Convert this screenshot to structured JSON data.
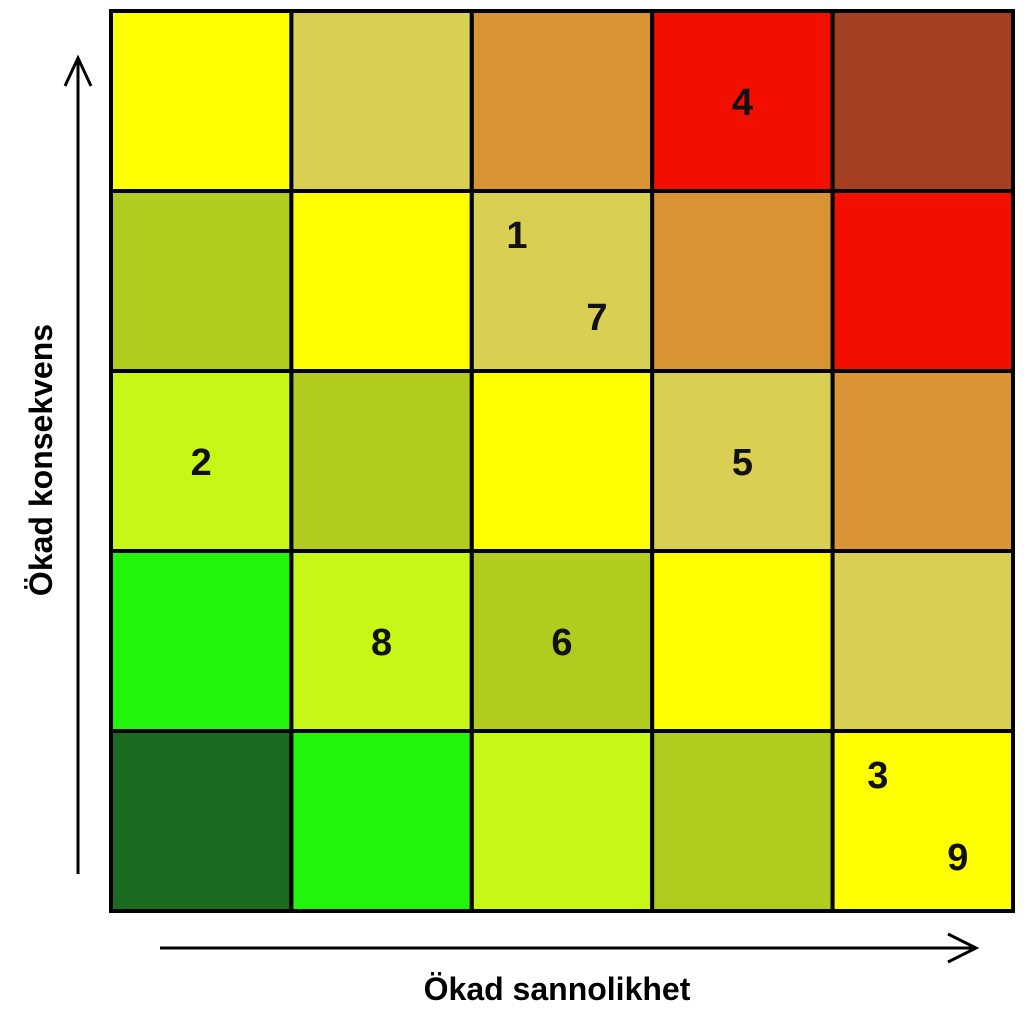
{
  "chart_data": {
    "type": "heatmap",
    "title": "",
    "xlabel": "Ökad sannolikhet",
    "ylabel": "Ökad konsekvens",
    "grid_size": [
      5,
      5
    ],
    "palette": [
      "#1a6b1f",
      "#22f50c",
      "#c6f716",
      "#b2cb1f",
      "#ffff00",
      "#d9cf52",
      "#d99533",
      "#f20f00",
      "#a53f21"
    ],
    "risk_levels": [
      [
        0,
        1,
        2,
        3,
        4
      ],
      [
        1,
        2,
        3,
        4,
        5
      ],
      [
        2,
        3,
        4,
        5,
        6
      ],
      [
        3,
        4,
        5,
        6,
        7
      ],
      [
        4,
        5,
        6,
        7,
        8
      ]
    ],
    "risks": [
      {
        "label": "1",
        "likelihood": 3,
        "consequence": 4,
        "pos": "top-left"
      },
      {
        "label": "7",
        "likelihood": 3,
        "consequence": 4,
        "pos": "bottom-right"
      },
      {
        "label": "4",
        "likelihood": 4,
        "consequence": 5,
        "pos": "center"
      },
      {
        "label": "2",
        "likelihood": 1,
        "consequence": 3,
        "pos": "center"
      },
      {
        "label": "5",
        "likelihood": 4,
        "consequence": 3,
        "pos": "center"
      },
      {
        "label": "8",
        "likelihood": 2,
        "consequence": 2,
        "pos": "center"
      },
      {
        "label": "6",
        "likelihood": 3,
        "consequence": 2,
        "pos": "center"
      },
      {
        "label": "3",
        "likelihood": 5,
        "consequence": 1,
        "pos": "top-left"
      },
      {
        "label": "9",
        "likelihood": 5,
        "consequence": 1,
        "pos": "bottom-right"
      }
    ]
  }
}
